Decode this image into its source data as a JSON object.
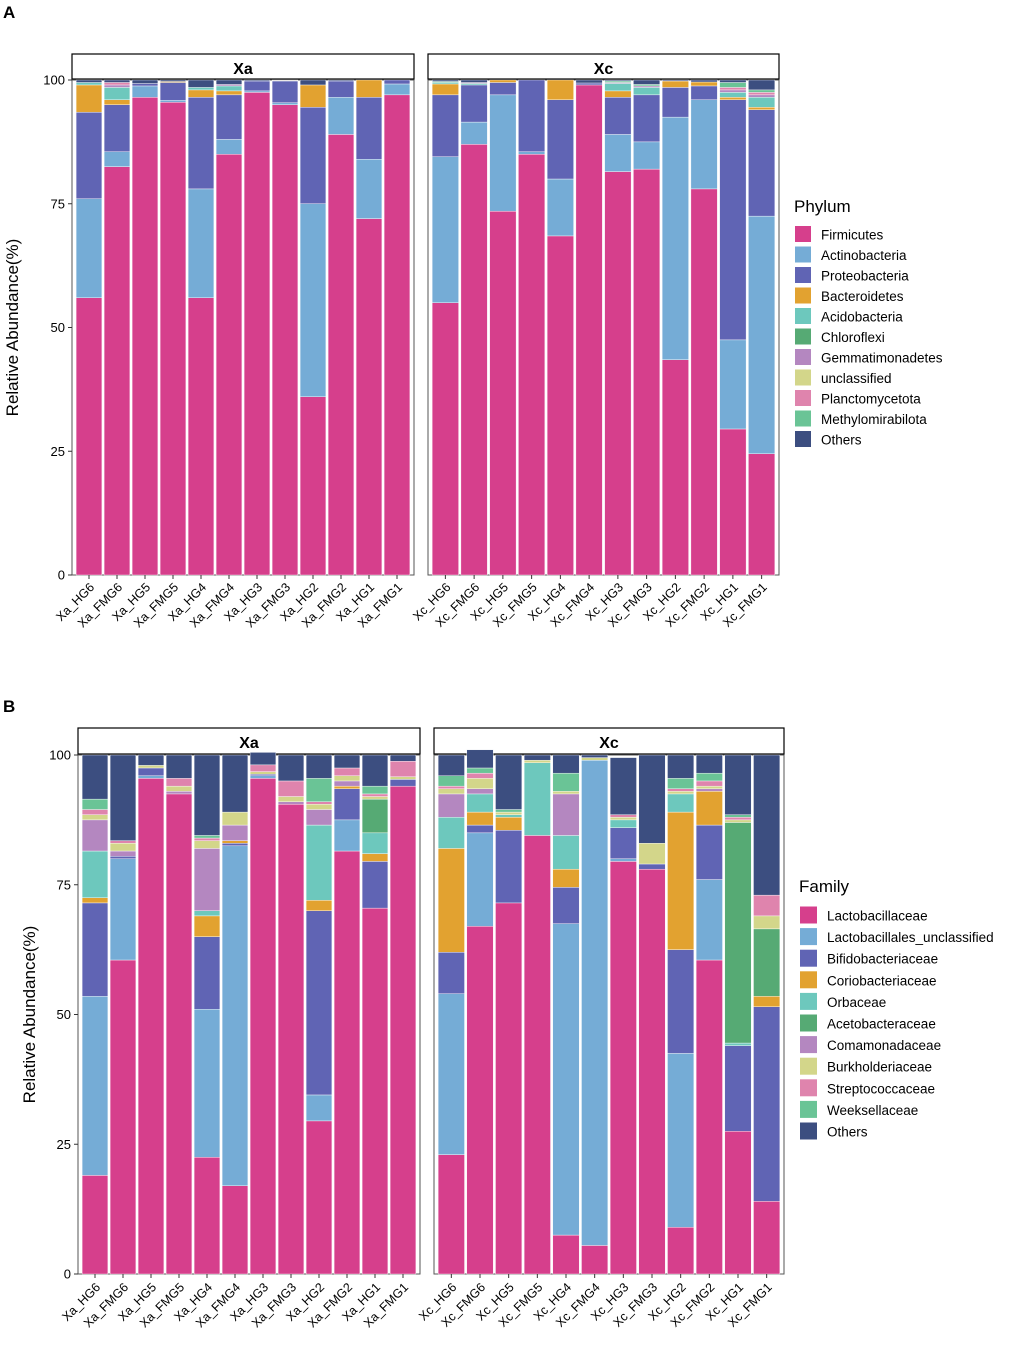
{
  "panel_letters": [
    "A",
    "B"
  ],
  "chart_data": [
    {
      "type": "stacked-bar",
      "panel": "A",
      "ylabel": "Relative Abundance(%)",
      "ylim": [
        0,
        100
      ],
      "yticks": [
        0,
        25,
        50,
        75,
        100
      ],
      "legend_title": "Phylum",
      "legend_position": "right",
      "facets": [
        {
          "title": "Xa",
          "samples": [
            "Xa_HG6",
            "Xa_FMG6",
            "Xa_HG5",
            "Xa_FMG5",
            "Xa_HG4",
            "Xa_FMG4",
            "Xa_HG3",
            "Xa_FMG3",
            "Xa_HG2",
            "Xa_FMG2",
            "Xa_HG1",
            "Xa_FMG1"
          ],
          "series": [
            {
              "name": "Firmicutes",
              "values": [
                56,
                82.5,
                96.5,
                95.5,
                56,
                85,
                97.5,
                95,
                36,
                89,
                72,
                97
              ]
            },
            {
              "name": "Actinobacteria",
              "values": [
                20,
                3,
                2.3,
                0.4,
                22,
                3,
                0.3,
                0.4,
                39,
                7.5,
                12,
                2.2
              ]
            },
            {
              "name": "Proteobacteria",
              "values": [
                17.5,
                9.5,
                0.5,
                3.6,
                18.5,
                9,
                2,
                4.4,
                19.5,
                3.3,
                12.5,
                0.8
              ]
            },
            {
              "name": "Bacteroidetes",
              "values": [
                5.5,
                1,
                0,
                0.2,
                1.5,
                0.8,
                0,
                0.1,
                4.5,
                0,
                3.5,
                0
              ]
            },
            {
              "name": "Acidobacteria",
              "values": [
                0.5,
                2.5,
                0,
                0,
                0.5,
                1,
                0,
                0,
                0,
                0,
                0,
                0
              ]
            },
            {
              "name": "Chloroflexi",
              "values": [
                0,
                0,
                0,
                0,
                0,
                0,
                0,
                0,
                0,
                0,
                0,
                0
              ]
            },
            {
              "name": "Gemmatimonadetes",
              "values": [
                0,
                0.5,
                0,
                0,
                0,
                0.3,
                0,
                0,
                0,
                0,
                0,
                0
              ]
            },
            {
              "name": "unclassified",
              "values": [
                0,
                0,
                0,
                0,
                0,
                0,
                0,
                0,
                0,
                0,
                0,
                0
              ]
            },
            {
              "name": "Planctomycetota",
              "values": [
                0,
                0.5,
                0,
                0,
                0,
                0,
                0,
                0,
                0,
                0,
                0,
                0
              ]
            },
            {
              "name": "Methylomirabilota",
              "values": [
                0,
                0,
                0,
                0,
                0,
                0,
                0,
                0,
                0,
                0,
                0,
                0
              ]
            },
            {
              "name": "Others",
              "values": [
                0.5,
                0.5,
                0.7,
                0.3,
                1.5,
                0.9,
                0.2,
                0.1,
                1,
                0.2,
                0,
                0
              ]
            }
          ]
        },
        {
          "title": "Xc",
          "samples": [
            "Xc_HG6",
            "Xc_FMG6",
            "Xc_HG5",
            "Xc_FMG5",
            "Xc_HG4",
            "Xc_FMG4",
            "Xc_HG3",
            "Xc_FMG3",
            "Xc_HG2",
            "Xc_FMG2",
            "Xc_HG1",
            "Xc_FMG1"
          ],
          "series": [
            {
              "name": "Firmicutes",
              "values": [
                55,
                87,
                73.5,
                85,
                68.5,
                99,
                81.5,
                82,
                43.5,
                78,
                29.5,
                24.5
              ]
            },
            {
              "name": "Actinobacteria",
              "values": [
                29.5,
                4.5,
                23.5,
                0.5,
                11.5,
                0,
                7.5,
                5.5,
                49,
                18,
                18,
                48
              ]
            },
            {
              "name": "Proteobacteria",
              "values": [
                12.5,
                7.5,
                2.5,
                14.5,
                16,
                0.4,
                7.5,
                9.5,
                6,
                2.8,
                48.5,
                21.5
              ]
            },
            {
              "name": "Bacteroidetes",
              "values": [
                2.2,
                0,
                0.5,
                0,
                4,
                0,
                1.3,
                0,
                1.3,
                0.8,
                0.5,
                0.5
              ]
            },
            {
              "name": "Acidobacteria",
              "values": [
                0.3,
                0.3,
                0,
                0,
                0,
                0,
                1.5,
                1.5,
                0,
                0,
                1,
                2
              ]
            },
            {
              "name": "Chloroflexi",
              "values": [
                0,
                0,
                0,
                0,
                0,
                0,
                0,
                0,
                0,
                0,
                0,
                0
              ]
            },
            {
              "name": "Gemmatimonadetes",
              "values": [
                0,
                0.2,
                0,
                0,
                0,
                0,
                0.2,
                0.3,
                0,
                0,
                0.5,
                0.5
              ]
            },
            {
              "name": "unclassified",
              "values": [
                0,
                0,
                0,
                0,
                0,
                0,
                0,
                0,
                0,
                0,
                0,
                0
              ]
            },
            {
              "name": "Planctomycetota",
              "values": [
                0,
                0,
                0,
                0,
                0,
                0,
                0,
                0,
                0,
                0,
                0.5,
                0.5
              ]
            },
            {
              "name": "Methylomirabilota",
              "values": [
                0.2,
                0,
                0,
                0,
                0,
                0,
                0.3,
                0.3,
                0,
                0,
                1,
                0.5
              ]
            },
            {
              "name": "Others",
              "values": [
                0.3,
                0.5,
                0,
                0,
                0,
                0.6,
                0.2,
                0.9,
                0.2,
                0.4,
                0.5,
                2
              ]
            }
          ]
        }
      ],
      "colors": {
        "Firmicutes": "#d63f8c",
        "Actinobacteria": "#75acd6",
        "Proteobacteria": "#6064b4",
        "Bacteroidetes": "#e2a230",
        "Acidobacteria": "#6dc8bd",
        "Chloroflexi": "#56aa74",
        "Gemmatimonadetes": "#b487c0",
        "unclassified": "#d3d68a",
        "Planctomycetota": "#df84ad",
        "Methylomirabilota": "#6ac496",
        "Others": "#3c4e80"
      }
    },
    {
      "type": "stacked-bar",
      "panel": "B",
      "ylabel": "Relative Abundance(%)",
      "ylim": [
        0,
        100
      ],
      "yticks": [
        0,
        25,
        50,
        75,
        100
      ],
      "legend_title": "Family",
      "legend_position": "right",
      "facets": [
        {
          "title": "Xa",
          "samples": [
            "Xa_HG6",
            "Xa_FMG6",
            "Xa_HG5",
            "Xa_FMG5",
            "Xa_HG4",
            "Xa_FMG4",
            "Xa_HG3",
            "Xa_FMG3",
            "Xa_HG2",
            "Xa_FMG2",
            "Xa_HG1",
            "Xa_FMG1"
          ],
          "series": [
            {
              "name": "Lactobacillaceae",
              "values": [
                19,
                60.5,
                95.5,
                92.5,
                22.5,
                17,
                95.5,
                90.5,
                29.5,
                81.5,
                70.5,
                94
              ]
            },
            {
              "name": "Lactobacillales_unclassified",
              "values": [
                34.5,
                19.5,
                0.5,
                0,
                28.5,
                65.5,
                0.5,
                0,
                5,
                6,
                0,
                0
              ]
            },
            {
              "name": "Bifidobacteriaceae",
              "values": [
                18,
                0.5,
                1.5,
                0,
                14,
                0.5,
                0.3,
                0,
                35.5,
                6,
                9,
                1.3
              ]
            },
            {
              "name": "Coriobacteriaceae",
              "values": [
                1,
                0,
                0,
                0,
                4,
                0.5,
                0,
                0,
                2,
                0.5,
                1.5,
                0
              ]
            },
            {
              "name": "Orbaceae",
              "values": [
                9,
                0,
                0,
                0,
                1,
                0,
                0,
                0,
                14.5,
                0,
                4,
                0
              ]
            },
            {
              "name": "Acetobacteraceae",
              "values": [
                0,
                0,
                0,
                0,
                0,
                0,
                0,
                0,
                0,
                0,
                6.5,
                0
              ]
            },
            {
              "name": "Comamonadaceae",
              "values": [
                6,
                1,
                0,
                0.5,
                12,
                3,
                0,
                0.5,
                3,
                1,
                0,
                0
              ]
            },
            {
              "name": "Burkholderiaceae",
              "values": [
                1,
                1.5,
                0.5,
                1,
                1.5,
                2.5,
                0.5,
                1,
                1,
                1,
                0.5,
                0.5
              ]
            },
            {
              "name": "Streptococcaceae",
              "values": [
                1,
                0.5,
                0,
                1.5,
                0.5,
                0,
                1.3,
                3,
                0.5,
                1.5,
                0.5,
                3
              ]
            },
            {
              "name": "Weeksellaceae",
              "values": [
                2,
                0,
                0,
                0,
                0.5,
                0,
                0,
                0,
                4.5,
                0,
                1.5,
                0
              ]
            },
            {
              "name": "Others",
              "values": [
                8.5,
                16.5,
                2,
                4.5,
                15.5,
                11,
                2.4,
                5,
                4.5,
                2.5,
                6,
                1.2
              ]
            }
          ]
        },
        {
          "title": "Xc",
          "samples": [
            "Xc_HG6",
            "Xc_FMG6",
            "Xc_HG5",
            "Xc_FMG5",
            "Xc_HG4",
            "Xc_FMG4",
            "Xc_HG3",
            "Xc_FMG3",
            "Xc_HG2",
            "Xc_FMG2",
            "Xc_HG1",
            "Xc_FMG1"
          ],
          "series": [
            {
              "name": "Lactobacillaceae",
              "values": [
                23,
                67,
                71.5,
                84.5,
                7.5,
                5.5,
                79.5,
                78,
                9,
                60.5,
                27.5,
                14
              ]
            },
            {
              "name": "Lactobacillales_unclassified",
              "values": [
                31,
                18,
                0,
                0,
                60,
                93.5,
                0.5,
                0,
                33.5,
                15.5,
                0,
                0
              ]
            },
            {
              "name": "Bifidobacteriaceae",
              "values": [
                8,
                1.5,
                14,
                0,
                7,
                0,
                6,
                1,
                20,
                10.5,
                16.5,
                37.5
              ]
            },
            {
              "name": "Coriobacteriaceae",
              "values": [
                20,
                2.5,
                2.5,
                0,
                3.5,
                0,
                0,
                0,
                26.5,
                6.5,
                0,
                2
              ]
            },
            {
              "name": "Orbaceae",
              "values": [
                6,
                3.5,
                0.5,
                14,
                6.5,
                0,
                1.5,
                0,
                3.5,
                0,
                0.5,
                0
              ]
            },
            {
              "name": "Acetobacteraceae",
              "values": [
                0,
                0,
                0,
                0,
                0,
                0,
                0,
                0,
                0,
                0,
                42.5,
                13
              ]
            },
            {
              "name": "Comamonadaceae",
              "values": [
                4.5,
                1,
                0,
                0,
                8,
                0,
                0,
                0,
                0,
                0.5,
                0,
                0
              ]
            },
            {
              "name": "Burkholderiaceae",
              "values": [
                1,
                2,
                0.5,
                0.5,
                0.5,
                0.5,
                0.5,
                4,
                0.5,
                0.5,
                0.5,
                2.5
              ]
            },
            {
              "name": "Streptococcaceae",
              "values": [
                0.5,
                1,
                0,
                0,
                0,
                0,
                0.5,
                0,
                0.5,
                1,
                0.5,
                4
              ]
            },
            {
              "name": "Weeksellaceae",
              "values": [
                2,
                1,
                0.5,
                0,
                3.5,
                0,
                0,
                0,
                2,
                1.5,
                0.5,
                0
              ]
            },
            {
              "name": "Others",
              "values": [
                4,
                3.5,
                10.5,
                1,
                3.5,
                0.5,
                11,
                17,
                4.5,
                3.5,
                11.5,
                27
              ]
            }
          ]
        }
      ],
      "colors": {
        "Lactobacillaceae": "#d63f8c",
        "Lactobacillales_unclassified": "#75acd6",
        "Bifidobacteriaceae": "#6064b4",
        "Coriobacteriaceae": "#e2a230",
        "Orbaceae": "#6dc8bd",
        "Acetobacteraceae": "#56aa74",
        "Comamonadaceae": "#b487c0",
        "Burkholderiaceae": "#d3d68a",
        "Streptococcaceae": "#df84ad",
        "Weeksellaceae": "#6ac496",
        "Others": "#3c4e80"
      }
    }
  ]
}
